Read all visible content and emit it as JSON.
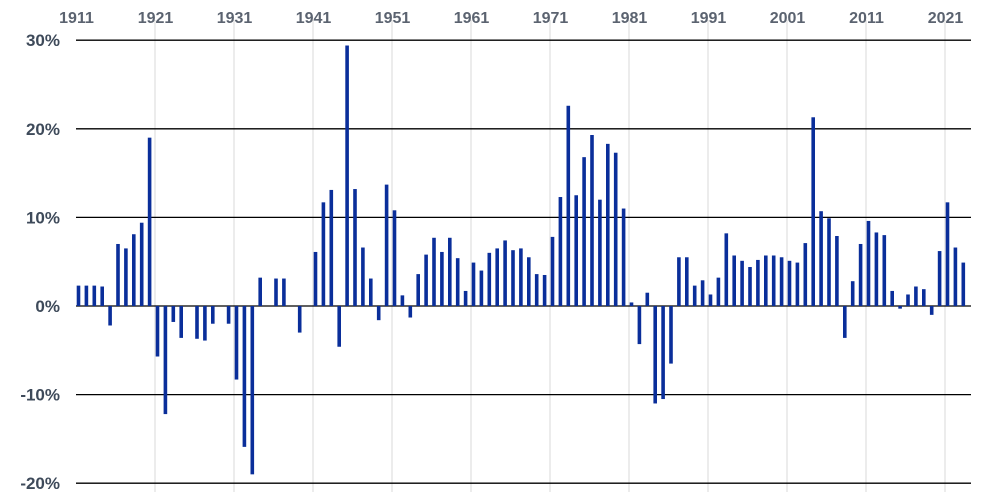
{
  "chart_data": {
    "type": "bar",
    "title": "",
    "xlabel": "",
    "ylabel": "",
    "x_tick_labels": [
      "1911",
      "1921",
      "1931",
      "1941",
      "1951",
      "1961",
      "1971",
      "1981",
      "1991",
      "2001",
      "2011",
      "2021"
    ],
    "x_tick_position": "top",
    "y_tick_labels": [
      "30%",
      "20%",
      "10%",
      "0%",
      "-10%",
      "-20%"
    ],
    "ylim": [
      -20,
      30
    ],
    "y_ticks": [
      30,
      20,
      10,
      0,
      -10,
      -20
    ],
    "vertical_grid": true,
    "horizontal_grid": true,
    "bar_color": "#0a2e9a",
    "years": [
      1911,
      1912,
      1913,
      1914,
      1915,
      1916,
      1917,
      1918,
      1919,
      1920,
      1921,
      1922,
      1923,
      1924,
      1925,
      1926,
      1927,
      1928,
      1929,
      1930,
      1931,
      1932,
      1933,
      1934,
      1935,
      1936,
      1937,
      1938,
      1939,
      1940,
      1941,
      1942,
      1943,
      1944,
      1945,
      1946,
      1947,
      1948,
      1949,
      1950,
      1951,
      1952,
      1953,
      1954,
      1955,
      1956,
      1957,
      1958,
      1959,
      1960,
      1961,
      1962,
      1963,
      1964,
      1965,
      1966,
      1967,
      1968,
      1969,
      1970,
      1971,
      1972,
      1973,
      1974,
      1975,
      1976,
      1977,
      1978,
      1979,
      1980,
      1981,
      1982,
      1983,
      1984,
      1985,
      1986,
      1987,
      1988,
      1989,
      1990,
      1991,
      1992,
      1993,
      1994,
      1995,
      1996,
      1997,
      1998,
      1999,
      2000,
      2001,
      2002,
      2003,
      2004,
      2005,
      2006,
      2007,
      2008,
      2009,
      2010,
      2011,
      2012,
      2013,
      2014,
      2015,
      2016,
      2017,
      2018,
      2019,
      2020,
      2021,
      2022,
      2023,
      2024
    ],
    "values": [
      2.3,
      2.3,
      2.3,
      2.2,
      -2.2,
      7.0,
      6.5,
      8.1,
      9.4,
      19.0,
      -5.7,
      -12.2,
      -1.8,
      -3.6,
      0.0,
      -3.7,
      -3.9,
      -2.0,
      0.0,
      -2.0,
      -8.3,
      -15.9,
      -19.0,
      3.2,
      0.0,
      3.1,
      3.1,
      0.0,
      -3.0,
      0.0,
      6.1,
      11.7,
      13.1,
      -4.6,
      29.4,
      13.2,
      6.6,
      3.1,
      -1.6,
      13.7,
      10.8,
      1.2,
      -1.3,
      3.6,
      5.8,
      7.7,
      6.1,
      7.7,
      5.4,
      1.7,
      4.9,
      4.0,
      6.0,
      6.5,
      7.4,
      6.3,
      6.5,
      5.5,
      3.6,
      3.5,
      7.8,
      12.3,
      22.6,
      12.5,
      16.8,
      19.3,
      12.0,
      18.3,
      17.3,
      11.0,
      0.4,
      -4.3,
      1.5,
      -11.0,
      -10.5,
      -6.5,
      5.5,
      5.5,
      2.3,
      2.9,
      1.3,
      3.2,
      8.2,
      5.7,
      5.1,
      4.4,
      5.2,
      5.7,
      5.7,
      5.5,
      5.1,
      4.9,
      7.1,
      21.3,
      10.7,
      9.9,
      7.9,
      -3.6,
      2.8,
      7.0,
      9.6,
      8.3,
      8.0,
      1.7,
      -0.3,
      1.3,
      2.2,
      1.9,
      -1.0,
      6.2,
      11.7,
      6.6,
      4.9,
      0.0
    ]
  }
}
